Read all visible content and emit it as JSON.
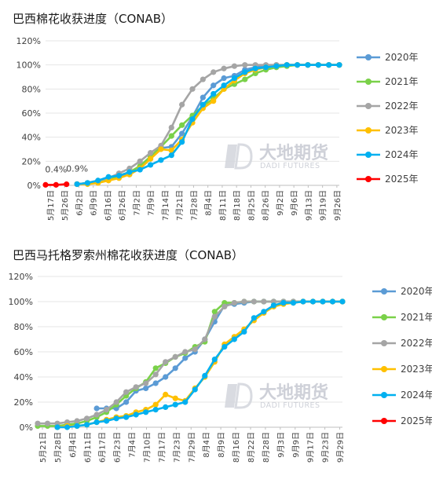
{
  "watermark": {
    "cn": "大地期货",
    "en": "DADI FUTURES"
  },
  "chart_data": [
    {
      "type": "line",
      "title": "巴西棉花收获进度（CONAB）",
      "xlabel": "",
      "ylabel": "",
      "ylim": [
        0,
        120
      ],
      "yticks": [
        "0%",
        "20%",
        "40%",
        "60%",
        "80%",
        "100%",
        "120%"
      ],
      "categories": [
        "5月17日",
        "5月26日",
        "6月2日",
        "6月9日",
        "6月16日",
        "6月26日",
        "7月2日",
        "7月9日",
        "7月14日",
        "7月21日",
        "7月28日",
        "8月4日",
        "8月11日",
        "8月18日",
        "8月25日",
        "8月26日",
        "9月2日",
        "9月6日",
        "9月13日",
        "9月19日",
        "9月26日"
      ],
      "legend_position": "right",
      "annotations": [
        {
          "text": "0.4%",
          "x": 1,
          "y": 0.4
        },
        {
          "text": "0.9%",
          "x": 3,
          "y": 0.9
        }
      ],
      "series": [
        {
          "name": "2020年",
          "color": "#5b9bd5",
          "x": [
            3,
            4,
            5,
            6,
            7,
            8,
            9,
            10,
            11,
            12,
            13,
            14,
            15,
            16,
            17,
            18,
            19,
            20,
            21,
            22,
            23,
            24,
            25,
            26,
            27,
            28
          ],
          "values": [
            1,
            2,
            3,
            5,
            7,
            9,
            14,
            22,
            31,
            32,
            43,
            57,
            73,
            83,
            89,
            91,
            96,
            98,
            99,
            100,
            100,
            100,
            100,
            100,
            100,
            100
          ]
        },
        {
          "name": "2021年",
          "color": "#7ad149",
          "x": [
            3,
            4,
            5,
            6,
            7,
            8,
            9,
            10,
            11,
            12,
            13,
            14,
            15,
            16,
            17,
            18,
            19,
            20,
            21,
            22,
            23,
            24,
            25,
            26,
            27,
            28
          ],
          "values": [
            1,
            2,
            3,
            5,
            8,
            11,
            16,
            24,
            32,
            41,
            50,
            58,
            66,
            72,
            80,
            84,
            88,
            93,
            96,
            98,
            99,
            100,
            100,
            100,
            100,
            100
          ]
        },
        {
          "name": "2022年",
          "color": "#a5a5a5",
          "x": [
            3,
            4,
            5,
            6,
            7,
            8,
            9,
            10,
            11,
            12,
            13,
            14,
            15,
            16,
            17,
            18,
            19,
            20,
            21,
            22,
            23,
            24,
            25,
            26,
            27,
            28
          ],
          "values": [
            1,
            2,
            4,
            6,
            10,
            14,
            20,
            27,
            33,
            48,
            67,
            80,
            88,
            94,
            97,
            99,
            100,
            100,
            100,
            100,
            100,
            100,
            100,
            100,
            100,
            100
          ]
        },
        {
          "name": "2023年",
          "color": "#ffc000",
          "x": [
            3,
            4,
            5,
            6,
            7,
            8,
            9,
            10,
            11,
            12,
            13,
            14,
            15,
            16,
            17,
            18,
            19,
            20,
            21,
            22,
            23,
            24,
            25,
            26,
            27,
            28
          ],
          "values": [
            1,
            1,
            2,
            4,
            6,
            9,
            14,
            22,
            30,
            29,
            38,
            52,
            64,
            70,
            80,
            87,
            93,
            96,
            98,
            99,
            100,
            100,
            100,
            100,
            100,
            100
          ]
        },
        {
          "name": "2024年",
          "color": "#00b0f0",
          "x": [
            3,
            4,
            5,
            6,
            7,
            8,
            9,
            10,
            11,
            12,
            13,
            14,
            15,
            16,
            17,
            18,
            19,
            20,
            21,
            22,
            23,
            24,
            25,
            26,
            27,
            28
          ],
          "values": [
            1,
            2,
            4,
            7,
            8,
            11,
            13,
            17,
            21,
            25,
            36,
            55,
            67,
            76,
            83,
            89,
            94,
            97,
            98,
            99,
            100,
            100,
            100,
            100,
            100,
            100
          ]
        },
        {
          "name": "2025年",
          "color": "#ff0000",
          "x": [
            0,
            1,
            2
          ],
          "values": [
            0.4,
            0.4,
            0.9
          ]
        }
      ]
    },
    {
      "type": "line",
      "title": "巴西马托格罗索州棉花收获进度（CONAB）",
      "xlabel": "",
      "ylabel": "",
      "ylim": [
        0,
        120
      ],
      "yticks": [
        "0%",
        "20%",
        "40%",
        "60%",
        "80%",
        "100%",
        "120%"
      ],
      "categories": [
        "5月21日",
        "5月28日",
        "6月4日",
        "6月11日",
        "6月17日",
        "6月23日",
        "7月4日",
        "7月10日",
        "7月17日",
        "7月23日",
        "7月29日",
        "8月4日",
        "8月9日",
        "8月16日",
        "8月22日",
        "8月28日",
        "9月3日",
        "9月9日",
        "9月17日",
        "9月23日",
        "9月29日"
      ],
      "legend_position": "right",
      "series": [
        {
          "name": "2020年",
          "color": "#5b9bd5",
          "x": [
            6,
            7,
            8,
            9,
            10,
            11,
            12,
            13,
            14,
            15,
            16,
            17,
            18,
            19,
            20,
            21,
            22,
            23,
            24,
            25,
            26,
            27,
            28,
            29,
            30,
            31
          ],
          "values": [
            15,
            15,
            15,
            20,
            29,
            31,
            35,
            40,
            47,
            55,
            60,
            70,
            84,
            97,
            98,
            99,
            100,
            100,
            100,
            100,
            100,
            100,
            100,
            100,
            100,
            100
          ]
        },
        {
          "name": "2021年",
          "color": "#7ad149",
          "x": [
            0,
            1,
            2,
            3,
            4,
            5,
            6,
            7,
            8,
            9,
            10,
            11,
            12,
            13,
            14,
            15,
            16,
            17,
            18,
            19,
            20,
            21,
            22,
            23,
            24,
            25,
            26,
            27,
            28,
            29,
            30,
            31
          ],
          "values": [
            1,
            1,
            1,
            2,
            3,
            5,
            8,
            12,
            18,
            25,
            31,
            36,
            47,
            51,
            56,
            59,
            64,
            68,
            92,
            99,
            99,
            100,
            100,
            100,
            100,
            100,
            100,
            100,
            100,
            100,
            100,
            100
          ]
        },
        {
          "name": "2022年",
          "color": "#a5a5a5",
          "x": [
            0,
            1,
            2,
            3,
            4,
            5,
            6,
            7,
            8,
            9,
            10,
            11,
            12,
            13,
            14,
            15,
            16,
            17,
            18,
            19,
            20,
            21,
            22,
            23,
            24,
            25,
            26,
            27,
            28,
            29,
            30,
            31
          ],
          "values": [
            3,
            3,
            3,
            4,
            5,
            7,
            10,
            14,
            20,
            28,
            32,
            35,
            42,
            52,
            56,
            60,
            62,
            70,
            88,
            96,
            99,
            100,
            100,
            100,
            100,
            100,
            100,
            100,
            100,
            100,
            100,
            100
          ]
        },
        {
          "name": "2023年",
          "color": "#ffc000",
          "x": [
            2,
            3,
            4,
            5,
            6,
            7,
            8,
            9,
            10,
            11,
            12,
            13,
            14,
            15,
            16,
            17,
            18,
            19,
            20,
            21,
            22,
            23,
            24,
            25,
            26,
            27,
            28,
            29,
            30,
            31
          ],
          "values": [
            0,
            1,
            1,
            2,
            4,
            6,
            8,
            9,
            12,
            14,
            18,
            26,
            23,
            21,
            31,
            40,
            52,
            66,
            72,
            78,
            85,
            91,
            96,
            98,
            99,
            100,
            100,
            100,
            100,
            100
          ]
        },
        {
          "name": "2024年",
          "color": "#00b0f0",
          "x": [
            2,
            3,
            4,
            5,
            6,
            7,
            8,
            9,
            10,
            11,
            12,
            13,
            14,
            15,
            16,
            17,
            18,
            19,
            20,
            21,
            22,
            23,
            24,
            25,
            26,
            27,
            28,
            29,
            30,
            31
          ],
          "values": [
            0,
            0,
            1,
            2,
            4,
            5,
            7,
            8,
            10,
            12,
            14,
            16,
            18,
            20,
            30,
            41,
            54,
            64,
            70,
            76,
            87,
            92,
            97,
            99,
            99,
            100,
            100,
            100,
            100,
            100
          ]
        },
        {
          "name": "2025年",
          "color": "#ff0000",
          "x": [],
          "values": []
        }
      ]
    }
  ]
}
